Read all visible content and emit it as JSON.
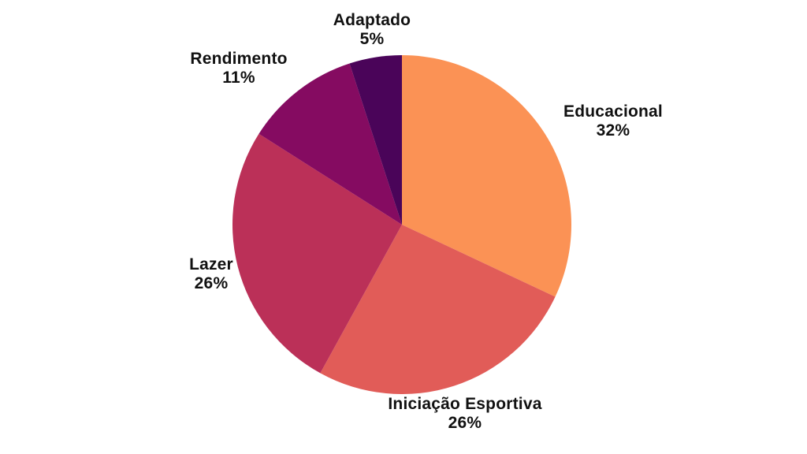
{
  "background_color": "#FFFFFF",
  "text_color": "#111111",
  "chart_data": {
    "type": "pie",
    "title": "",
    "legend_position": "none",
    "start_angle_deg": 0,
    "direction": "clockwise",
    "unit": "%",
    "categories": [
      "Educacional",
      "Iniciação Esportiva",
      "Lazer",
      "Rendimento",
      "Adaptado"
    ],
    "values": [
      32,
      26,
      26,
      11,
      5
    ],
    "slices": [
      {
        "id": "educacional",
        "label": "Educacional",
        "value": 32,
        "pct_text": "32%",
        "color": "#FB9255"
      },
      {
        "id": "iniciacao-esportiva",
        "label": "Iniciação Esportiva",
        "value": 26,
        "pct_text": "26%",
        "color": "#E15C58"
      },
      {
        "id": "lazer",
        "label": "Lazer",
        "value": 26,
        "pct_text": "26%",
        "color": "#BB3058"
      },
      {
        "id": "rendimento",
        "label": "Rendimento",
        "value": 11,
        "pct_text": "11%",
        "color": "#850B61"
      },
      {
        "id": "adaptado",
        "label": "Adaptado",
        "value": 5,
        "pct_text": "5%",
        "color": "#4A0459"
      }
    ]
  }
}
